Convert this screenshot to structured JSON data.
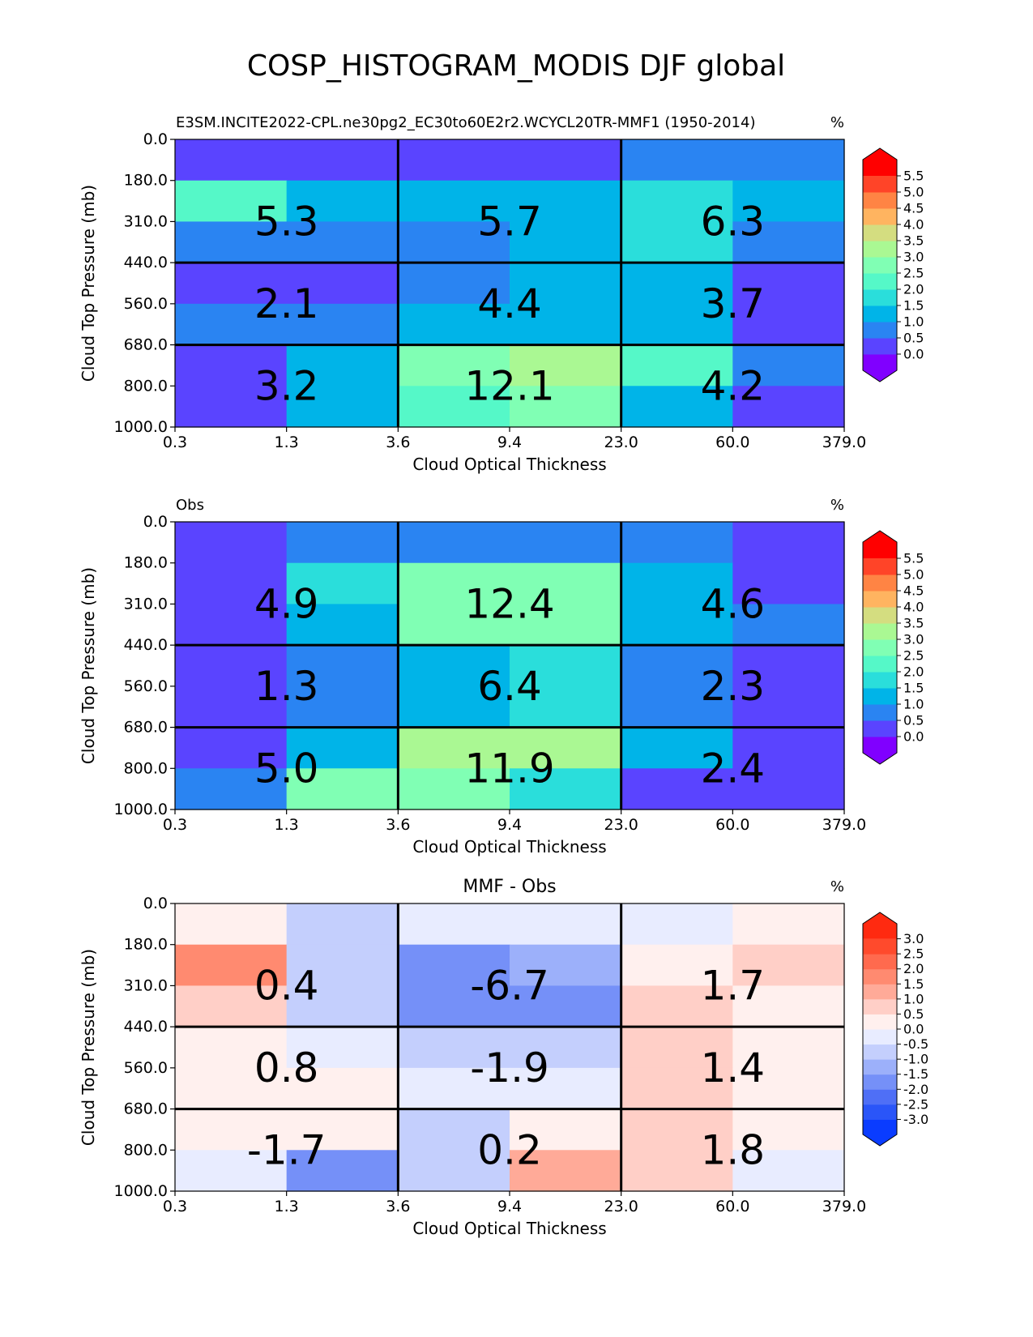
{
  "figure": {
    "title": "COSP_HISTOGRAM_MODIS DJF global"
  },
  "chart_data": [
    {
      "type": "heatmap",
      "title_left": "E3SM.INCITE2022-CPL.ne30pg2_EC30to60E2r2.WCYCL20TR-MMF1 (1950-2014)",
      "title_center": "",
      "units": "%",
      "xlabel": "Cloud Optical Thickness",
      "ylabel": "Cloud Top Pressure (mb)",
      "xticks": [
        "0.3",
        "1.3",
        "3.6",
        "9.4",
        "23.0",
        "60.0",
        "379.0"
      ],
      "yticks": [
        "0.0",
        "180.0",
        "310.0",
        "440.0",
        "560.0",
        "680.0",
        "800.0",
        "1000.0"
      ],
      "colorbar": {
        "ticks": [
          "0.0",
          "0.5",
          "1.0",
          "1.5",
          "2.0",
          "2.5",
          "3.0",
          "3.5",
          "4.0",
          "4.5",
          "5.0",
          "5.5"
        ],
        "colors": [
          "#8000ff",
          "#5a44ff",
          "#2a84f2",
          "#00b4e8",
          "#2adedb",
          "#55f8c8",
          "#80ffb4",
          "#aaf893",
          "#d4dd80",
          "#ffb460",
          "#ff8444",
          "#ff4428",
          "#ff0000"
        ]
      },
      "cells": [
        [
          0.2,
          0.2,
          0.2,
          0.2,
          0.8,
          0.8
        ],
        [
          2.2,
          1.3,
          1.3,
          1.3,
          1.7,
          1.3
        ],
        [
          0.8,
          0.8,
          0.8,
          1.3,
          1.7,
          0.8
        ],
        [
          0.2,
          0.2,
          0.8,
          1.3,
          1.3,
          0.2
        ],
        [
          0.8,
          0.8,
          1.3,
          1.3,
          1.3,
          0.2
        ],
        [
          0.2,
          1.3,
          2.8,
          3.3,
          2.2,
          0.8
        ],
        [
          0.2,
          1.3,
          2.2,
          2.7,
          1.3,
          0.2
        ]
      ],
      "box_labels": [
        [
          "5.3",
          "5.7",
          "6.3"
        ],
        [
          "2.1",
          "4.4",
          "3.7"
        ],
        [
          "3.2",
          "12.1",
          "4.2"
        ]
      ]
    },
    {
      "type": "heatmap",
      "title_left": "Obs",
      "title_center": "",
      "units": "%",
      "xlabel": "Cloud Optical Thickness",
      "ylabel": "Cloud Top Pressure (mb)",
      "xticks": [
        "0.3",
        "1.3",
        "3.6",
        "9.4",
        "23.0",
        "60.0",
        "379.0"
      ],
      "yticks": [
        "0.0",
        "180.0",
        "310.0",
        "440.0",
        "560.0",
        "680.0",
        "800.0",
        "1000.0"
      ],
      "colorbar": {
        "ticks": [
          "0.0",
          "0.5",
          "1.0",
          "1.5",
          "2.0",
          "2.5",
          "3.0",
          "3.5",
          "4.0",
          "4.5",
          "5.0",
          "5.5"
        ],
        "colors": [
          "#8000ff",
          "#5a44ff",
          "#2a84f2",
          "#00b4e8",
          "#2adedb",
          "#55f8c8",
          "#80ffb4",
          "#aaf893",
          "#d4dd80",
          "#ffb460",
          "#ff8444",
          "#ff4428",
          "#ff0000"
        ]
      },
      "cells": [
        [
          0.2,
          0.8,
          0.8,
          0.8,
          0.8,
          0.2
        ],
        [
          0.2,
          1.7,
          2.7,
          2.7,
          1.3,
          0.2
        ],
        [
          0.2,
          1.3,
          2.7,
          2.7,
          1.3,
          0.8
        ],
        [
          0.2,
          0.8,
          1.3,
          1.7,
          0.8,
          0.2
        ],
        [
          0.2,
          0.8,
          1.3,
          1.7,
          0.8,
          0.2
        ],
        [
          0.2,
          1.3,
          3.3,
          3.3,
          1.3,
          0.2
        ],
        [
          0.8,
          2.7,
          2.8,
          1.7,
          0.2,
          0.2
        ]
      ],
      "box_labels": [
        [
          "4.9",
          "12.4",
          "4.6"
        ],
        [
          "1.3",
          "6.4",
          "2.3"
        ],
        [
          "5.0",
          "11.9",
          "2.4"
        ]
      ]
    },
    {
      "type": "heatmap",
      "title_left": "",
      "title_center": "MMF - Obs",
      "units": "%",
      "xlabel": "Cloud Optical Thickness",
      "ylabel": "Cloud Top Pressure (mb)",
      "xticks": [
        "0.3",
        "1.3",
        "3.6",
        "9.4",
        "23.0",
        "60.0",
        "379.0"
      ],
      "yticks": [
        "0.0",
        "180.0",
        "310.0",
        "440.0",
        "560.0",
        "680.0",
        "800.0",
        "1000.0"
      ],
      "colorbar": {
        "ticks": [
          "-3.0",
          "-2.5",
          "-2.0",
          "-1.5",
          "-1.0",
          "-0.5",
          "0.0",
          "0.5",
          "1.0",
          "1.5",
          "2.0",
          "2.5",
          "3.0"
        ],
        "colors": [
          "#0a3cff",
          "#2a55f8",
          "#4f6ff6",
          "#7590f8",
          "#9cb0fa",
          "#c4cffd",
          "#e8ecff",
          "#fff0ee",
          "#ffcfc7",
          "#ffaa98",
          "#ff8a70",
          "#ff6a4e",
          "#ff4a2c",
          "#ff2a10"
        ]
      },
      "cells": [
        [
          0.2,
          -0.7,
          -0.2,
          -0.2,
          -0.2,
          0.2
        ],
        [
          1.7,
          -0.7,
          -1.7,
          -1.2,
          0.2,
          0.7
        ],
        [
          0.7,
          -0.7,
          -1.7,
          -1.7,
          0.7,
          0.2
        ],
        [
          0.2,
          -0.2,
          -0.7,
          -0.7,
          0.7,
          0.2
        ],
        [
          0.2,
          0.2,
          -0.2,
          -0.2,
          0.7,
          0.2
        ],
        [
          0.2,
          0.2,
          -0.7,
          0.2,
          0.7,
          0.2
        ],
        [
          -0.2,
          -1.7,
          -0.7,
          1.2,
          0.7,
          -0.2
        ]
      ],
      "box_labels": [
        [
          "0.4",
          "-6.7",
          "1.7"
        ],
        [
          "0.8",
          "-1.9",
          "1.4"
        ],
        [
          "-1.7",
          "0.2",
          "1.8"
        ]
      ]
    }
  ]
}
